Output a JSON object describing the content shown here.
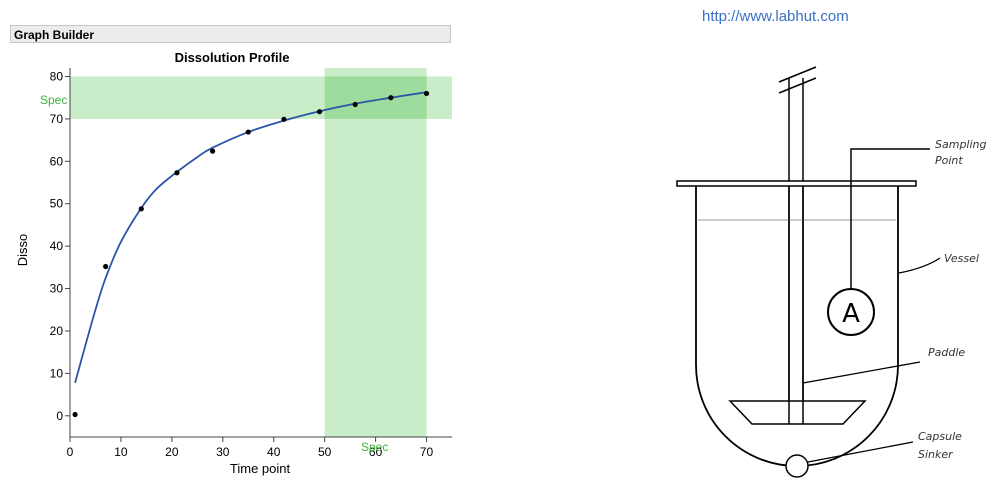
{
  "panel_header": "Graph Builder",
  "url": "http://www.labhut.com",
  "chart_data": {
    "type": "scatter",
    "title": "Dissolution Profile",
    "xlabel": "Time point",
    "ylabel": "Disso",
    "xlim": [
      0,
      75
    ],
    "ylim": [
      -5,
      82
    ],
    "xticks": [
      0,
      10,
      20,
      30,
      40,
      50,
      60,
      70
    ],
    "yticks": [
      0,
      10,
      20,
      30,
      40,
      50,
      60,
      70,
      80
    ],
    "grid": false,
    "points": [
      {
        "x": 1,
        "y": 0.3
      },
      {
        "x": 7,
        "y": 35.2
      },
      {
        "x": 14,
        "y": 48.8
      },
      {
        "x": 21,
        "y": 57.3
      },
      {
        "x": 28,
        "y": 62.4
      },
      {
        "x": 35,
        "y": 66.9
      },
      {
        "x": 42,
        "y": 69.9
      },
      {
        "x": 49,
        "y": 71.7
      },
      {
        "x": 56,
        "y": 73.4
      },
      {
        "x": 63,
        "y": 75.0
      },
      {
        "x": 70,
        "y": 76.0
      }
    ],
    "fit_curve": [
      {
        "x": 1,
        "y": 7.8
      },
      {
        "x": 3,
        "y": 16.5
      },
      {
        "x": 5,
        "y": 25
      },
      {
        "x": 7,
        "y": 32.5
      },
      {
        "x": 10,
        "y": 41
      },
      {
        "x": 14,
        "y": 49
      },
      {
        "x": 17,
        "y": 53.5
      },
      {
        "x": 21,
        "y": 57.5
      },
      {
        "x": 25,
        "y": 61
      },
      {
        "x": 28,
        "y": 63.2
      },
      {
        "x": 35,
        "y": 66.9
      },
      {
        "x": 42,
        "y": 69.6
      },
      {
        "x": 49,
        "y": 71.8
      },
      {
        "x": 56,
        "y": 73.6
      },
      {
        "x": 63,
        "y": 75.0
      },
      {
        "x": 70,
        "y": 76.3
      }
    ],
    "spec_bands": {
      "y_band": {
        "from": 70,
        "to": 80,
        "label": "Spec"
      },
      "x_band": {
        "from": 50,
        "to": 70,
        "label": "Spec"
      }
    },
    "colors": {
      "curve": "#2a55a8",
      "points": "#000000",
      "band": "#c8edc8",
      "overlap": "#9edc9e",
      "spec_text": "#3bb53b"
    }
  },
  "diagram": {
    "labels": {
      "sampling_point": [
        "Sampling",
        "Point"
      ],
      "vessel": "Vessel",
      "paddle": "Paddle",
      "capsule_sinker": [
        "Capsule",
        "Sinker"
      ],
      "sampler": "A"
    }
  }
}
